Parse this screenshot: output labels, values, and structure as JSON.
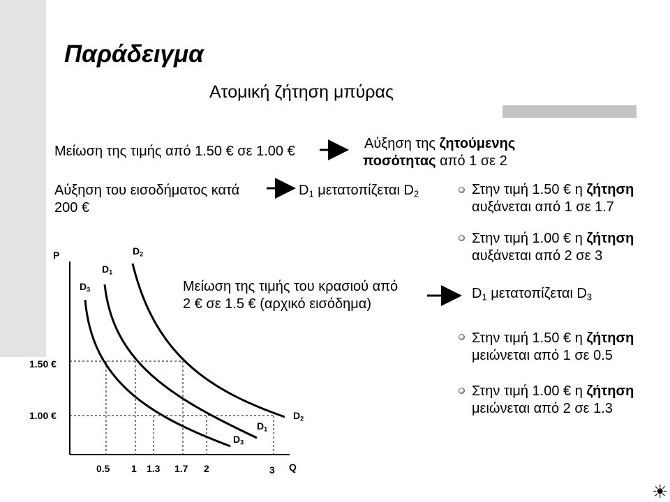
{
  "title": "Παράδειγμα",
  "subtitle": "Ατομική ζήτηση μπύρας",
  "statements": {
    "price_drop": "Μείωση της τιμής από 1.50 € σε 1.00 €",
    "qty_increase_1": "Αύξηση της",
    "qty_increase_2": "ζητούμενης",
    "qty_increase_3": "ποσότητας",
    "qty_increase_4": "από 1 σε 2",
    "income_increase_1": "Αύξηση του εισοδήματος κατά",
    "income_increase_2": "200 €",
    "shift_d2_a": "D",
    "shift_d2_b": "1",
    "shift_d2_c": " μετατοπίζεται D",
    "shift_d2_d": "2",
    "wine_drop_1": "Μείωση της τιμής του κρασιού από",
    "wine_drop_2": "2 € σε 1.5 € (αρχικό εισόδημα)",
    "shift_d3_a": "D",
    "shift_d3_b": "1",
    "shift_d3_c": " μετατοπίζεται D",
    "shift_d3_d": "3"
  },
  "bullets": [
    {
      "l1a": "Στην τιμή 1.50 € η ",
      "l1b": "ζήτηση",
      "l2": "αυξάνεται από 1 σε 1.7"
    },
    {
      "l1a": "Στην τιμή 1.00 € η ",
      "l1b": "ζήτηση",
      "l2": "αυξάνεται από 2 σε 3"
    },
    {
      "l1a": "Στην τιμή 1.50 € η ",
      "l1b": "ζήτηση",
      "l2": "μειώνεται  από 1 σε 0.5"
    },
    {
      "l1a": "Στην τιμή 1.00 € η ",
      "l1b": "ζήτηση",
      "l2": "μειώνεται από 2 σε 1.3"
    }
  ],
  "graph": {
    "y_axis_label": "P",
    "x_axis_label": "Q",
    "y_ticks": [
      "1.50 €",
      "1.00 €"
    ],
    "x_ticks": [
      "0.5",
      "1",
      "1.3",
      "1.7",
      "2",
      "3"
    ],
    "curve_labels_top": {
      "d3": "D",
      "d3s": "3",
      "d1": "D",
      "d1s": "1",
      "d2": "D",
      "d2s": "2"
    },
    "curve_labels_bottom": {
      "d3": "D",
      "d3s": "3",
      "d1": "D",
      "d1s": "1",
      "d2": "D",
      "d2s": "2"
    }
  },
  "icons": {
    "corner": "sun-icon"
  }
}
